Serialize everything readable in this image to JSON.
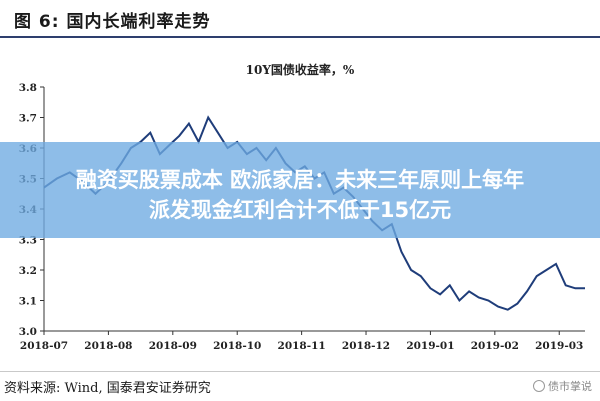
{
  "figure": {
    "header": "图 6:  国内长端利率走势",
    "source": "资料来源:  Wind,  国泰君安证券研究",
    "watermark": "债市掌说"
  },
  "overlay": {
    "line1": "融资买股票成本 欧派家居：未来三年原则上每年",
    "line2": "派发现金红利合计不低于15亿元"
  },
  "colors": {
    "series": "#1f3d7a",
    "overlay": "#6eaae1"
  },
  "chart_data": {
    "type": "line",
    "title": "10Y国债收益率，%",
    "ylim": [
      3.0,
      3.8
    ],
    "yticks": [
      3.0,
      3.1,
      3.2,
      3.3,
      3.4,
      3.5,
      3.6,
      3.7,
      3.8
    ],
    "ytick_labels": [
      "3.0",
      "3.1",
      "3.2",
      "3.3",
      "3.4",
      "3.5",
      "3.6",
      "3.7",
      "3.8"
    ],
    "xlim": [
      0,
      8.4
    ],
    "xticks": [
      0,
      1,
      2,
      3,
      4,
      5,
      6,
      7,
      8
    ],
    "xtick_labels": [
      "2018-07",
      "2018-08",
      "2018-09",
      "2018-10",
      "2018-11",
      "2018-12",
      "2019-01",
      "2019-02",
      "2019-03"
    ],
    "grid": false,
    "x": [
      0.0,
      0.2,
      0.4,
      0.6,
      0.8,
      1.0,
      1.2,
      1.35,
      1.5,
      1.65,
      1.8,
      1.95,
      2.1,
      2.25,
      2.4,
      2.55,
      2.7,
      2.85,
      3.0,
      3.15,
      3.3,
      3.45,
      3.6,
      3.75,
      3.9,
      4.05,
      4.2,
      4.35,
      4.5,
      4.65,
      4.8,
      4.95,
      5.1,
      5.25,
      5.4,
      5.55,
      5.7,
      5.85,
      6.0,
      6.15,
      6.3,
      6.45,
      6.6,
      6.75,
      6.9,
      7.05,
      7.2,
      7.35,
      7.5,
      7.65,
      7.8,
      7.95,
      8.1,
      8.25,
      8.4
    ],
    "series": [
      {
        "values": [
          3.47,
          3.5,
          3.52,
          3.49,
          3.45,
          3.49,
          3.55,
          3.6,
          3.62,
          3.65,
          3.58,
          3.61,
          3.64,
          3.68,
          3.62,
          3.7,
          3.65,
          3.6,
          3.62,
          3.58,
          3.6,
          3.56,
          3.6,
          3.55,
          3.52,
          3.54,
          3.5,
          3.52,
          3.45,
          3.47,
          3.44,
          3.4,
          3.36,
          3.33,
          3.35,
          3.26,
          3.2,
          3.18,
          3.14,
          3.12,
          3.15,
          3.1,
          3.13,
          3.11,
          3.1,
          3.08,
          3.07,
          3.09,
          3.13,
          3.18,
          3.2,
          3.22,
          3.15,
          3.14,
          3.14
        ]
      }
    ]
  }
}
